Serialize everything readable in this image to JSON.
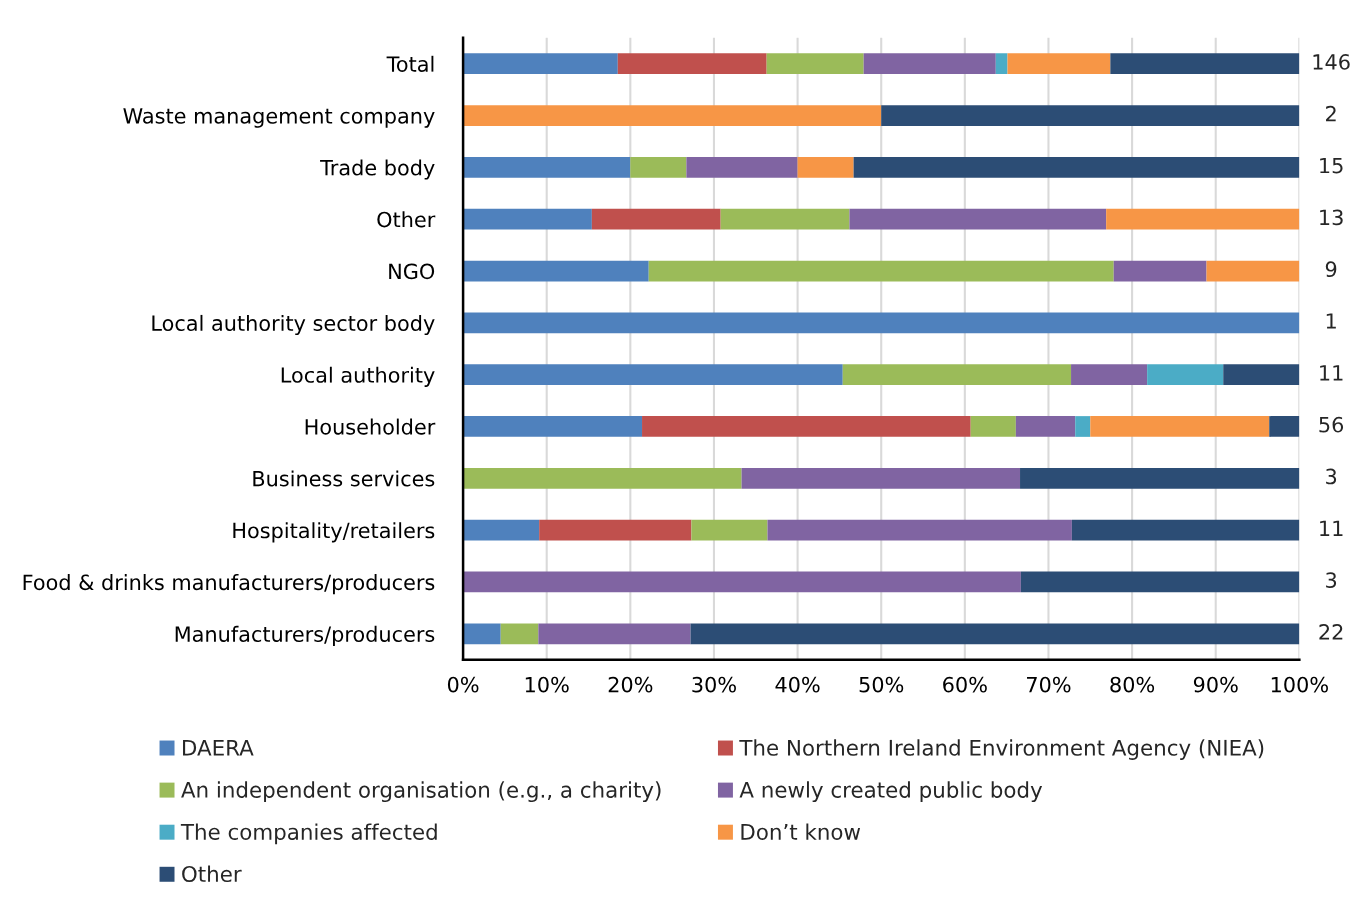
{
  "chart_data": {
    "type": "bar",
    "orientation": "horizontal",
    "stacked": true,
    "categories": [
      "Total",
      "Waste management company",
      "Trade body",
      "Other",
      "NGO",
      "Local authority sector body",
      "Local authority",
      "Householder",
      "Business services",
      "Hospitality/retailers",
      "Food & drinks manufacturers/producers",
      "Manufacturers/producers"
    ],
    "series": [
      {
        "name": "DAERA",
        "color": "#4f81bd",
        "values": [
          18.5,
          null,
          20.0,
          15.4,
          22.2,
          100,
          45.4,
          21.4,
          null,
          9.1,
          null,
          4.5
        ]
      },
      {
        "name": "The Northern Ireland Environment Agency (NIEA)",
        "color": "#c0504d",
        "values": [
          17.8,
          null,
          null,
          15.4,
          null,
          null,
          null,
          39.3,
          null,
          18.2,
          null,
          null
        ]
      },
      {
        "name": "An independent organisation (e.g., a charity)",
        "color": "#9bbb59",
        "values": [
          11.6,
          null,
          6.7,
          15.4,
          55.6,
          null,
          27.3,
          5.4,
          33.3,
          9.1,
          null,
          4.5
        ]
      },
      {
        "name": "A newly created public body",
        "color": "#8064a2",
        "values": [
          15.8,
          null,
          13.3,
          30.7,
          11.1,
          null,
          9.1,
          7.1,
          33.3,
          36.4,
          66.7,
          18.2
        ]
      },
      {
        "name": "The companies affected",
        "color": "#4bacc6",
        "values": [
          1.4,
          null,
          null,
          null,
          null,
          null,
          9.1,
          1.8,
          null,
          null,
          null,
          null
        ]
      },
      {
        "name": "Don’t know",
        "color": "#f79646",
        "values": [
          12.3,
          50,
          6.7,
          23.1,
          11.1,
          null,
          null,
          21.4,
          null,
          null,
          null,
          null
        ]
      },
      {
        "name": "Other",
        "color": "#2c4d75",
        "values": [
          22.6,
          50,
          53.3,
          null,
          null,
          null,
          9.1,
          3.6,
          33.4,
          27.2,
          33.3,
          72.8
        ]
      }
    ],
    "annotations": [
      "146",
      "2",
      "15",
      "13",
      "9",
      "1",
      "11",
      "56",
      "3",
      "11",
      "3",
      "22"
    ],
    "xlim": [
      0,
      100
    ],
    "xticks": [
      {
        "value": 0,
        "label": "0%"
      },
      {
        "value": 10,
        "label": "10%"
      },
      {
        "value": 20,
        "label": "20%"
      },
      {
        "value": 30,
        "label": "30%"
      },
      {
        "value": 40,
        "label": "40%"
      },
      {
        "value": 50,
        "label": "50%"
      },
      {
        "value": 60,
        "label": "60%"
      },
      {
        "value": 70,
        "label": "70%"
      },
      {
        "value": 80,
        "label": "80%"
      },
      {
        "value": 90,
        "label": "90%"
      },
      {
        "value": 100,
        "label": "100%"
      }
    ],
    "grid": "x",
    "legend": "bottom"
  }
}
